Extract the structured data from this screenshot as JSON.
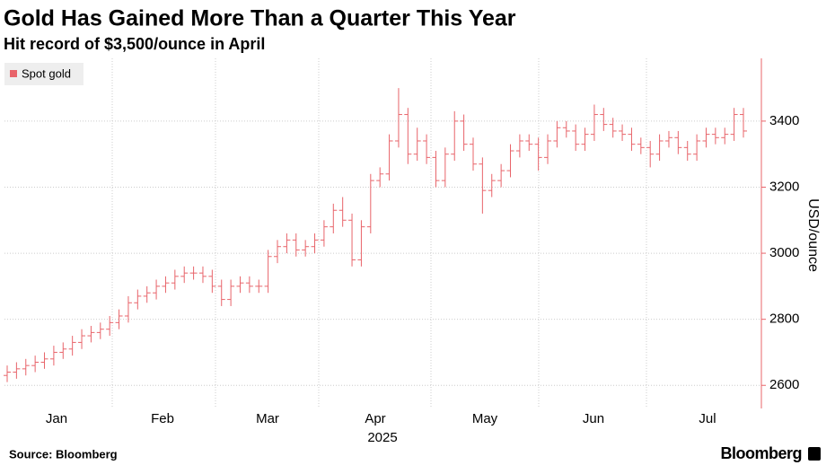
{
  "chart_data": {
    "type": "ohlc",
    "title": "Gold Has Gained More Than a Quarter This Year",
    "subtitle": "Hit record of $3,500/ounce in April",
    "y_axis_label": "USD/ounce",
    "source": "Source: Bloomberg",
    "brand": "Bloomberg",
    "x_labels": [
      "Jan",
      "Feb",
      "Mar",
      "Apr",
      "May",
      "Jun",
      "Jul"
    ],
    "x_sublabel": "2025",
    "ylim": [
      2530,
      3590
    ],
    "yticks": [
      2600,
      2800,
      3000,
      3200,
      3400
    ],
    "grid": true,
    "legend": "top-left",
    "series": [
      {
        "name": "Spot gold",
        "color": "#e8646a",
        "open": [
          2630,
          2640,
          2650,
          2660,
          2670,
          2680,
          2700,
          2710,
          2730,
          2750,
          2760,
          2770,
          2790,
          2810,
          2850,
          2870,
          2880,
          2900,
          2910,
          2930,
          2940,
          2940,
          2930,
          2900,
          2860,
          2900,
          2910,
          2900,
          2900,
          2990,
          3020,
          3040,
          3010,
          3020,
          3040,
          3080,
          3130,
          3100,
          2980,
          3080,
          3220,
          3240,
          3340,
          3420,
          3300,
          3340,
          3290,
          3220,
          3300,
          3400,
          3330,
          3270,
          3190,
          3220,
          3250,
          3310,
          3340,
          3330,
          3290,
          3340,
          3380,
          3370,
          3330,
          3360,
          3420,
          3390,
          3370,
          3360,
          3330,
          3320,
          3300,
          3340,
          3350,
          3320,
          3300,
          3340,
          3360,
          3350,
          3360,
          3420
        ],
        "high": [
          2660,
          2670,
          2680,
          2690,
          2700,
          2720,
          2730,
          2750,
          2770,
          2780,
          2790,
          2810,
          2830,
          2870,
          2890,
          2900,
          2920,
          2930,
          2950,
          2960,
          2960,
          2960,
          2950,
          2920,
          2920,
          2930,
          2930,
          2920,
          3010,
          3040,
          3060,
          3060,
          3040,
          3060,
          3100,
          3150,
          3170,
          3120,
          3100,
          3240,
          3260,
          3360,
          3500,
          3440,
          3380,
          3360,
          3310,
          3320,
          3430,
          3420,
          3350,
          3290,
          3240,
          3270,
          3330,
          3360,
          3360,
          3350,
          3360,
          3400,
          3400,
          3390,
          3380,
          3450,
          3440,
          3410,
          3390,
          3380,
          3350,
          3340,
          3360,
          3370,
          3370,
          3340,
          3360,
          3380,
          3380,
          3380,
          3440,
          3440
        ],
        "low": [
          2610,
          2620,
          2630,
          2640,
          2650,
          2660,
          2680,
          2690,
          2710,
          2730,
          2740,
          2750,
          2770,
          2790,
          2830,
          2850,
          2860,
          2880,
          2890,
          2910,
          2920,
          2910,
          2880,
          2840,
          2840,
          2880,
          2880,
          2880,
          2880,
          2970,
          3000,
          2990,
          2990,
          3000,
          3020,
          3060,
          3080,
          2960,
          2960,
          3060,
          3200,
          3220,
          3320,
          3270,
          3280,
          3270,
          3200,
          3200,
          3280,
          3310,
          3250,
          3120,
          3170,
          3200,
          3230,
          3290,
          3310,
          3250,
          3270,
          3320,
          3350,
          3310,
          3310,
          3340,
          3370,
          3350,
          3340,
          3310,
          3300,
          3260,
          3280,
          3320,
          3300,
          3280,
          3280,
          3320,
          3330,
          3330,
          3340,
          3350
        ],
        "close": [
          2640,
          2650,
          2660,
          2670,
          2680,
          2700,
          2710,
          2730,
          2750,
          2760,
          2770,
          2790,
          2810,
          2850,
          2870,
          2880,
          2900,
          2910,
          2930,
          2940,
          2940,
          2930,
          2900,
          2860,
          2900,
          2910,
          2900,
          2900,
          2990,
          3020,
          3040,
          3010,
          3020,
          3040,
          3080,
          3130,
          3100,
          2980,
          3080,
          3220,
          3240,
          3340,
          3420,
          3300,
          3340,
          3290,
          3220,
          3300,
          3400,
          3330,
          3270,
          3190,
          3220,
          3250,
          3310,
          3340,
          3330,
          3290,
          3340,
          3380,
          3370,
          3330,
          3360,
          3420,
          3390,
          3370,
          3360,
          3330,
          3320,
          3300,
          3340,
          3350,
          3320,
          3300,
          3340,
          3360,
          3350,
          3360,
          3420,
          3370
        ]
      }
    ]
  }
}
